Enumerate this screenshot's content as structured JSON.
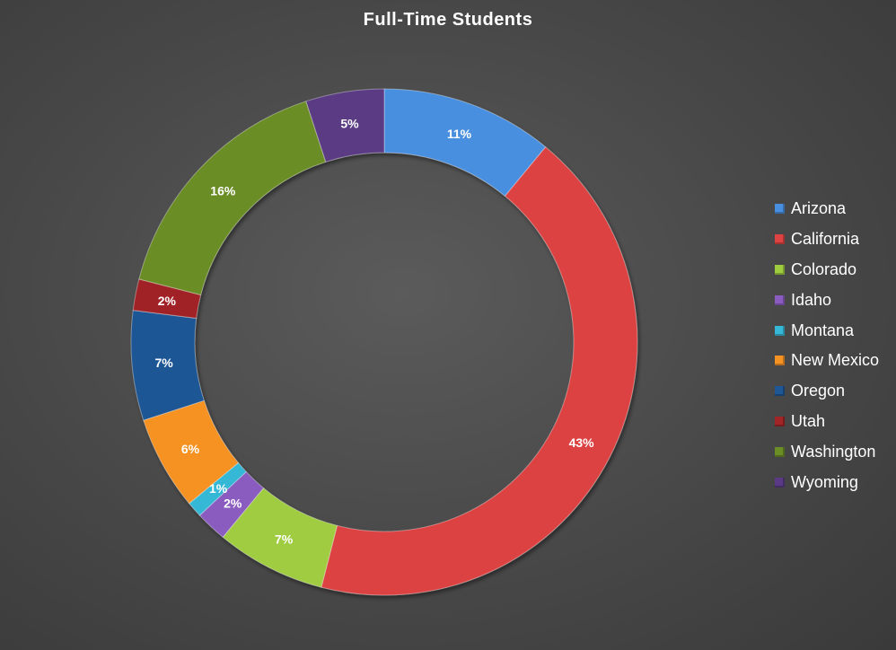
{
  "chart_data": {
    "type": "pie",
    "variant": "doughnut",
    "title": "Full-Time Students",
    "categories": [
      "Arizona",
      "California",
      "Colorado",
      "Idaho",
      "Montana",
      "New Mexico",
      "Oregon",
      "Utah",
      "Washington",
      "Wyoming"
    ],
    "values": [
      11,
      43,
      7,
      2,
      1,
      6,
      7,
      2,
      16,
      5
    ],
    "value_labels": [
      "11%",
      "43%",
      "7%",
      "2%",
      "1%",
      "6%",
      "7%",
      "2%",
      "16%",
      "5%"
    ],
    "unit": "%",
    "colors": [
      "#4a8fdf",
      "#dc4342",
      "#9fcc3f",
      "#8a5cc0",
      "#36b7d6",
      "#f59224",
      "#1f5694",
      "#a12427",
      "#6b8d26",
      "#5a3a84"
    ],
    "legend_position": "right",
    "grid": false
  },
  "chart": {
    "background": "#4a4a4a"
  }
}
